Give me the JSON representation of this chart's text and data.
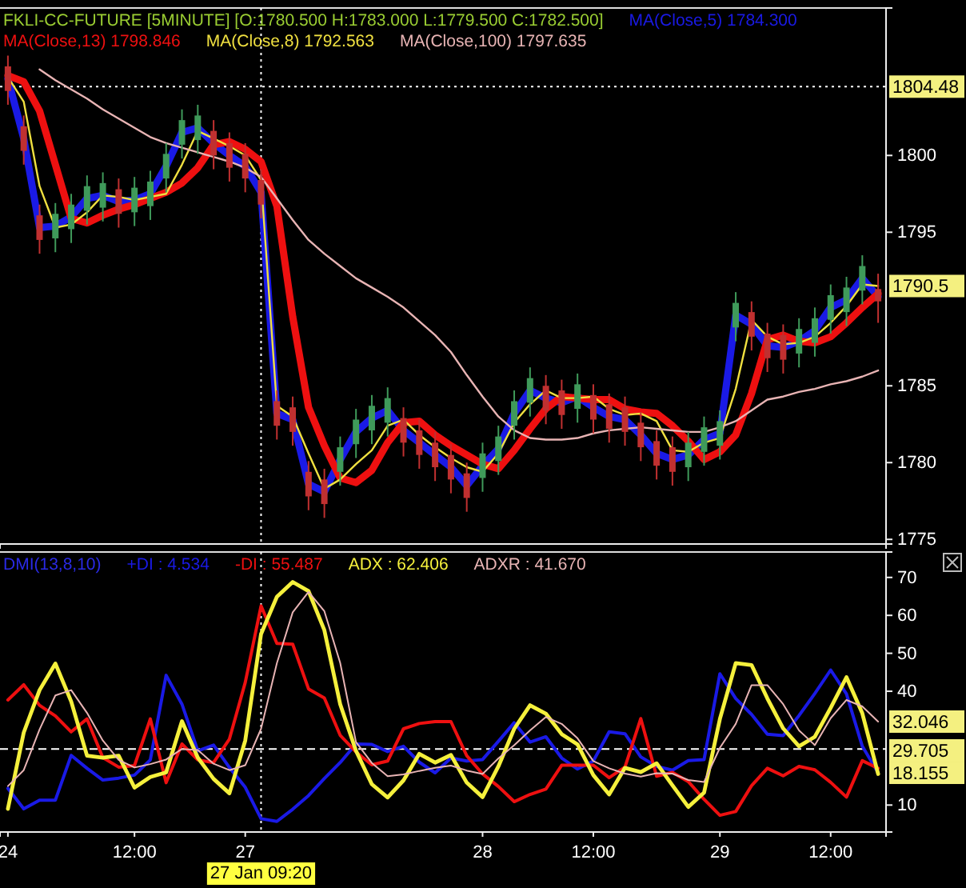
{
  "chart_data": [
    {
      "type": "candlestick",
      "title": "FKLI-CC-FUTURE [5MINUTE] [O:1780.500 H:1783.000 L:1779.500 C:1782.500]",
      "legend": "top left",
      "grid": false,
      "tick_labels": "y",
      "categories": [
        "24",
        null,
        null,
        null,
        null,
        null,
        null,
        null,
        "12:00",
        null,
        null,
        null,
        null,
        null,
        null,
        "27",
        "27 Jan 09:20",
        null,
        null,
        null,
        null,
        null,
        null,
        null,
        null,
        null,
        null,
        null,
        null,
        null,
        "28",
        null,
        null,
        null,
        null,
        null,
        null,
        "12:00",
        null,
        null,
        null,
        null,
        null,
        null,
        null,
        "29",
        null,
        null,
        null,
        null,
        null,
        null,
        "12:00",
        null,
        null,
        null
      ],
      "ylim": [
        1774.7,
        1809.6
      ],
      "yticks": [
        1775,
        1780,
        1785,
        1795,
        1800
      ],
      "ohlc": [
        [
          1805.8,
          1806.5,
          1803.3,
          1804.2
        ],
        [
          1801.9,
          1802.6,
          1799.4,
          1800.3
        ],
        [
          1796.1,
          1796.8,
          1793.6,
          1794.5
        ],
        [
          1794.6,
          1796.9,
          1793.7,
          1796.2
        ],
        [
          1795.2,
          1797.5,
          1794.3,
          1796.8
        ],
        [
          1796.4,
          1798.7,
          1795.5,
          1798.0
        ],
        [
          1796.6,
          1798.9,
          1795.7,
          1798.2
        ],
        [
          1797.8,
          1798.5,
          1795.3,
          1796.2
        ],
        [
          1796.3,
          1798.6,
          1795.4,
          1797.9
        ],
        [
          1796.7,
          1799.0,
          1795.8,
          1798.3
        ],
        [
          1798.5,
          1800.8,
          1797.6,
          1800.1
        ],
        [
          1800.7,
          1803.0,
          1799.8,
          1802.3
        ],
        [
          1801.0,
          1803.3,
          1800.1,
          1802.6
        ],
        [
          1801.6,
          1802.3,
          1799.1,
          1800.0
        ],
        [
          1800.8,
          1801.5,
          1798.3,
          1799.2
        ],
        [
          1800.1,
          1800.8,
          1797.6,
          1798.5
        ],
        [
          1798.4,
          1799.1,
          1795.9,
          1796.8
        ],
        [
          1784.0,
          1784.7,
          1781.5,
          1782.4
        ],
        [
          1783.6,
          1784.3,
          1781.1,
          1782.0
        ],
        [
          1779.4,
          1780.1,
          1776.9,
          1777.8
        ],
        [
          1778.9,
          1779.6,
          1776.4,
          1777.3
        ],
        [
          1779.4,
          1781.7,
          1778.5,
          1781.0
        ],
        [
          1781.2,
          1783.5,
          1780.3,
          1782.8
        ],
        [
          1782.1,
          1784.4,
          1781.2,
          1783.7
        ],
        [
          1782.6,
          1784.9,
          1781.7,
          1784.2
        ],
        [
          1782.9,
          1783.6,
          1780.4,
          1781.3
        ],
        [
          1782.1,
          1782.8,
          1779.6,
          1780.5
        ],
        [
          1781.3,
          1782.0,
          1778.8,
          1779.7
        ],
        [
          1780.5,
          1781.2,
          1778.0,
          1778.9
        ],
        [
          1779.3,
          1780.0,
          1776.8,
          1777.7
        ],
        [
          1779.0,
          1781.3,
          1778.1,
          1780.6
        ],
        [
          1780.1,
          1782.4,
          1779.2,
          1781.7
        ],
        [
          1782.4,
          1784.7,
          1781.5,
          1784.0
        ],
        [
          1783.9,
          1786.2,
          1783.0,
          1785.5
        ],
        [
          1785.0,
          1785.7,
          1782.5,
          1783.4
        ],
        [
          1784.7,
          1785.4,
          1782.2,
          1783.1
        ],
        [
          1783.5,
          1785.8,
          1782.6,
          1785.1
        ],
        [
          1784.4,
          1785.1,
          1781.9,
          1782.8
        ],
        [
          1783.8,
          1784.5,
          1781.3,
          1782.2
        ],
        [
          1783.6,
          1784.3,
          1781.1,
          1782.0
        ],
        [
          1782.6,
          1783.3,
          1780.1,
          1781.0
        ],
        [
          1781.4,
          1782.1,
          1778.9,
          1779.8
        ],
        [
          1781.0,
          1781.7,
          1778.5,
          1779.4
        ],
        [
          1779.7,
          1782.0,
          1778.8,
          1781.3
        ],
        [
          1780.7,
          1783.0,
          1779.8,
          1782.3
        ],
        [
          1781.1,
          1783.4,
          1780.2,
          1782.7
        ],
        [
          1788.8,
          1791.1,
          1787.9,
          1790.4
        ],
        [
          1789.8,
          1790.5,
          1787.3,
          1788.2
        ],
        [
          1788.4,
          1789.1,
          1785.9,
          1786.8
        ],
        [
          1788.3,
          1789.0,
          1785.8,
          1786.7
        ],
        [
          1787.1,
          1789.4,
          1786.2,
          1788.7
        ],
        [
          1787.8,
          1790.1,
          1786.9,
          1789.4
        ],
        [
          1789.3,
          1791.6,
          1788.4,
          1790.9
        ],
        [
          1789.8,
          1792.1,
          1788.9,
          1791.4
        ],
        [
          1791.2,
          1793.5,
          1790.3,
          1792.8
        ],
        [
          1791.3,
          1792.3,
          1789.1,
          1790.5
        ]
      ],
      "series": [
        {
          "type": "line",
          "name": "MA(Close,5) 1784.300",
          "color": "#1a1ae6",
          "values": [
            1805.0,
            1801.1,
            1795.3,
            1795.4,
            1796.0,
            1797.2,
            1797.4,
            1797.0,
            1797.1,
            1797.5,
            1799.3,
            1801.5,
            1801.8,
            1800.8,
            1800.0,
            1799.3,
            1797.6,
            1783.2,
            1782.8,
            1778.6,
            1778.1,
            1780.2,
            1782.0,
            1782.9,
            1783.4,
            1782.1,
            1781.3,
            1780.5,
            1779.7,
            1778.5,
            1779.8,
            1780.9,
            1783.2,
            1784.7,
            1784.2,
            1783.9,
            1784.3,
            1783.6,
            1783.0,
            1782.8,
            1781.8,
            1780.6,
            1780.2,
            1780.5,
            1781.5,
            1781.9,
            1789.6,
            1789.0,
            1787.6,
            1787.5,
            1787.9,
            1788.6,
            1790.1,
            1790.6,
            1792.0,
            1790.8
          ]
        },
        {
          "type": "line",
          "name": "MA(Close,13) 1798.846",
          "color": "#ee1010",
          "values": [
            1805.2,
            1804.8,
            1802.9,
            1799.4,
            1795.9,
            1795.6,
            1796.1,
            1796.5,
            1796.8,
            1797.2,
            1797.6,
            1798.2,
            1799.2,
            1800.7,
            1800.9,
            1800.4,
            1799.6,
            1796.7,
            1789.5,
            1783.6,
            1781.1,
            1779.0,
            1778.7,
            1779.5,
            1781.3,
            1782.6,
            1782.7,
            1781.8,
            1781.1,
            1780.5,
            1779.9,
            1779.6,
            1780.8,
            1782.2,
            1783.5,
            1784.3,
            1784.2,
            1784.1,
            1784.1,
            1783.5,
            1783.3,
            1783.2,
            1782.4,
            1781.4,
            1780.2,
            1780.7,
            1781.8,
            1784.5,
            1788.0,
            1788.3,
            1787.9,
            1787.8,
            1788.2,
            1789.1,
            1790.1,
            1791.0
          ]
        },
        {
          "type": "line",
          "name": "MA(Close,8) 1792.563",
          "color": "#f0e040",
          "values": [
            1805.1,
            1803.5,
            1798.0,
            1795.3,
            1795.5,
            1796.3,
            1797.4,
            1797.3,
            1797.1,
            1797.3,
            1797.5,
            1799.4,
            1801.6,
            1801.1,
            1800.6,
            1800.0,
            1798.4,
            1783.7,
            1783.0,
            1780.6,
            1778.3,
            1778.9,
            1779.9,
            1780.8,
            1782.4,
            1782.8,
            1781.8,
            1781.0,
            1780.3,
            1779.7,
            1779.4,
            1780.6,
            1782.6,
            1783.8,
            1784.7,
            1784.2,
            1784.2,
            1784.3,
            1783.5,
            1783.1,
            1783.2,
            1782.7,
            1780.8,
            1780.7,
            1781.3,
            1781.6,
            1784.8,
            1789.3,
            1788.2,
            1787.7,
            1787.8,
            1788.2,
            1789.1,
            1790.2,
            1791.6,
            1791.5
          ]
        },
        {
          "type": "line",
          "name": "MA(Close,100) 1797.635",
          "color": "#e8b4b4",
          "values": [
            null,
            null,
            1805.6,
            1804.9,
            1804.3,
            1803.7,
            1803.0,
            1802.4,
            1801.8,
            1801.2,
            1800.8,
            1800.5,
            1800.2,
            1799.9,
            1799.6,
            1799.2,
            1798.6,
            1797.2,
            1795.8,
            1794.5,
            1793.6,
            1792.8,
            1792.0,
            1791.4,
            1790.8,
            1790.1,
            1789.2,
            1788.3,
            1787.2,
            1785.7,
            1784.3,
            1783.0,
            1782.1,
            1781.6,
            1781.5,
            1781.5,
            1781.6,
            1781.9,
            1782.1,
            1782.2,
            1782.3,
            1782.2,
            1782.1,
            1782.0,
            1782.0,
            1782.3,
            1782.7,
            1783.4,
            1784.1,
            1784.3,
            1784.6,
            1784.8,
            1785.1,
            1785.3,
            1785.6,
            1786.0
          ]
        }
      ],
      "ref_lines": [
        {
          "axis": "y",
          "value": 1804.48,
          "label": "1804.48",
          "line_style": "dotted"
        },
        {
          "axis": "x",
          "value": "27 Jan 09:20",
          "line_style": "dotted"
        }
      ],
      "annotations": [
        "1790.5"
      ]
    },
    {
      "type": "line",
      "title": "DMI(13,8,10)",
      "legend": "top left",
      "grid": false,
      "categories": [
        "24",
        null,
        null,
        null,
        null,
        null,
        null,
        null,
        "12:00",
        null,
        null,
        null,
        null,
        null,
        null,
        "27",
        "27 Jan 09:20",
        null,
        null,
        null,
        null,
        null,
        null,
        null,
        null,
        null,
        null,
        null,
        null,
        null,
        "28",
        null,
        null,
        null,
        null,
        null,
        null,
        "12:00",
        null,
        null,
        null,
        null,
        null,
        null,
        null,
        "29",
        null,
        null,
        null,
        null,
        null,
        null,
        "12:00",
        null,
        null,
        null
      ],
      "ylim": [
        2.9,
        76.7
      ],
      "yticks": [
        10,
        40,
        50,
        60,
        70
      ],
      "series": [
        {
          "name": "+DI : 4.534",
          "color": "#1a1ae6",
          "values": [
            14.4,
            9.0,
            11.3,
            11.3,
            23.1,
            19.7,
            16.6,
            17.1,
            17.9,
            21.9,
            44.2,
            36.6,
            24.3,
            25.8,
            19.9,
            14.7,
            6.4,
            5.7,
            8.9,
            12.5,
            17.0,
            21.2,
            26.1,
            26.0,
            24.1,
            25.5,
            21.3,
            18.5,
            22.4,
            21.6,
            22.0,
            26.8,
            31.7,
            26.6,
            28.0,
            22.4,
            19.5,
            21.6,
            29.3,
            28.8,
            22.7,
            20.2,
            19.2,
            21.7,
            22.0,
            44.6,
            38.1,
            33.9,
            28.7,
            28.3,
            33.6,
            39.4,
            45.6,
            39.3,
            25.5,
            18.5
          ]
        },
        {
          "name": "-DI : 55.487",
          "color": "#ee1010",
          "values": [
            37.7,
            41.7,
            36.3,
            33.5,
            29.3,
            32.7,
            22.5,
            20.0,
            20.4,
            32.7,
            15.9,
            26.1,
            21.9,
            21.2,
            27.4,
            42.3,
            62.5,
            52.6,
            52.4,
            40.6,
            38.2,
            28.4,
            24.0,
            20.6,
            21.6,
            30.1,
            31.5,
            32.0,
            32.0,
            23.0,
            18.2,
            14.9,
            10.9,
            12.8,
            14.2,
            20.5,
            20.5,
            20.5,
            17.2,
            20.0,
            32.8,
            17.6,
            18.6,
            16.2,
            11.5,
            7.3,
            8.3,
            15.1,
            19.7,
            17.7,
            20.2,
            19.3,
            16.0,
            12.1,
            21.7,
            19.7
          ]
        },
        {
          "name": "ADX : 62.406",
          "color": "#f5f03c",
          "values": [
            9.0,
            29.1,
            40.3,
            47.3,
            37.3,
            23.0,
            22.5,
            23.0,
            14.6,
            17.4,
            18.6,
            32.1,
            22.5,
            16.9,
            13.1,
            27.0,
            55.1,
            64.9,
            68.8,
            66.4,
            56.1,
            36.6,
            24.3,
            15.5,
            12.0,
            16.5,
            23.5,
            21.2,
            23.2,
            15.9,
            12.1,
            20.2,
            30.1,
            36.3,
            34.1,
            28.7,
            26.0,
            17.9,
            12.8,
            19.8,
            18.7,
            21.0,
            15.2,
            9.5,
            13.3,
            32.7,
            47.4,
            46.9,
            38.1,
            30.2,
            25.5,
            28.0,
            35.6,
            43.7,
            34.2,
            18.2
          ]
        },
        {
          "name": "ADXR : 41.670",
          "color": "#e8b4b4",
          "values": [
            15.0,
            19.2,
            29.9,
            38.9,
            40.3,
            34.3,
            27.0,
            21.9,
            19.9,
            20.8,
            22.0,
            24.8,
            24.5,
            20.9,
            19.2,
            20.5,
            30.1,
            47.4,
            60.8,
            66.2,
            61.1,
            47.5,
            26.6,
            21.1,
            17.6,
            18.1,
            19.0,
            19.8,
            20.4,
            19.1,
            18.2,
            22.3,
            25.8,
            29.7,
            33.2,
            31.4,
            27.6,
            21.6,
            19.7,
            18.3,
            17.5,
            18.4,
            18.3,
            16.6,
            16.1,
            25.1,
            31.4,
            41.6,
            41.6,
            36.6,
            29.7,
            25.8,
            32.9,
            37.7,
            36.0,
            32.0
          ]
        }
      ],
      "ref_lines": [
        {
          "axis": "x",
          "value": "27 Jan 09:20",
          "line_style": "dotted"
        },
        {
          "axis": "y",
          "value": 24.8,
          "line_style": "dashed"
        }
      ],
      "annotations": [
        "32.046",
        "29.705",
        "18.155"
      ]
    }
  ]
}
